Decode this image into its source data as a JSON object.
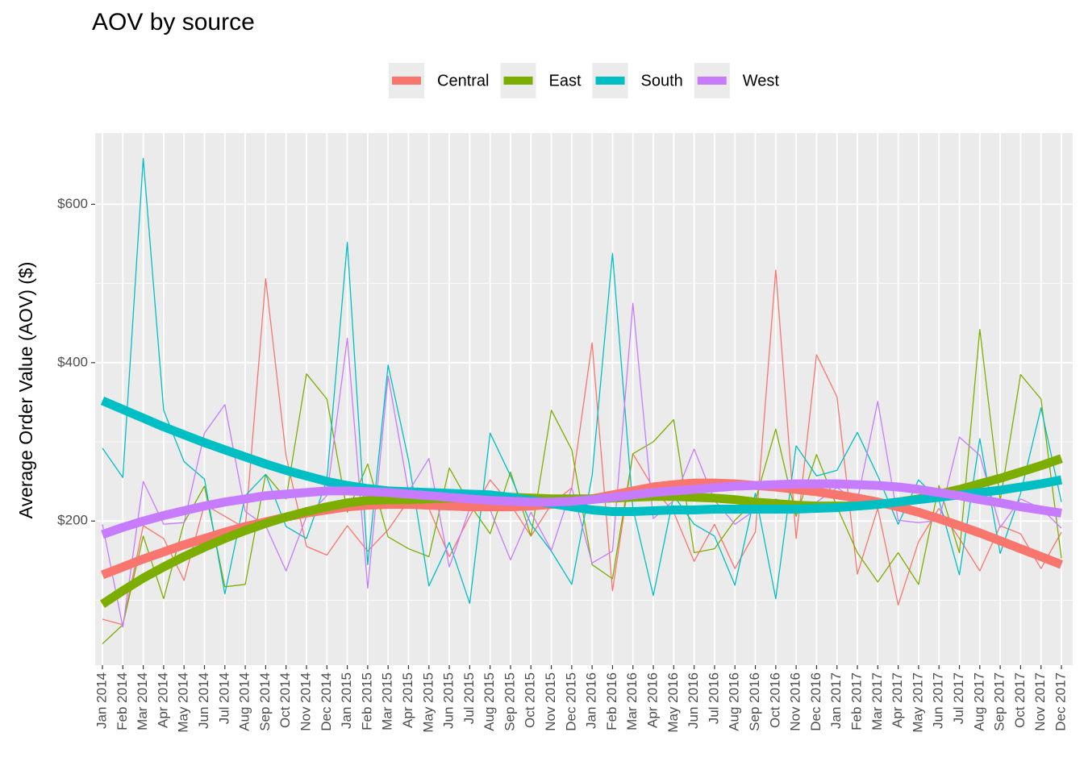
{
  "chart_data": {
    "type": "line",
    "title": "AOV by source",
    "y_label": "Average Order Value (AOV) ($)",
    "categories": [
      "Jan 2014",
      "Feb 2014",
      "Mar 2014",
      "Apr 2014",
      "May 2014",
      "Jun 2014",
      "Jul 2014",
      "Aug 2014",
      "Sep 2014",
      "Oct 2014",
      "Nov 2014",
      "Dec 2014",
      "Jan 2015",
      "Feb 2015",
      "Mar 2015",
      "Apr 2015",
      "May 2015",
      "Jun 2015",
      "Jul 2015",
      "Aug 2015",
      "Sep 2015",
      "Oct 2015",
      "Nov 2015",
      "Dec 2015",
      "Jan 2016",
      "Feb 2016",
      "Mar 2016",
      "Apr 2016",
      "May 2016",
      "Jun 2016",
      "Jul 2016",
      "Aug 2016",
      "Sep 2016",
      "Oct 2016",
      "Nov 2016",
      "Dec 2016",
      "Jan 2017",
      "Feb 2017",
      "Mar 2017",
      "Apr 2017",
      "May 2017",
      "Jun 2017",
      "Jul 2017",
      "Aug 2017",
      "Sep 2017",
      "Oct 2017",
      "Nov 2017",
      "Dec 2017"
    ],
    "series": [
      {
        "name": "Central",
        "color": "#f8766d",
        "values": [
          76,
          69,
          194,
          178,
          125,
          221,
          206,
          191,
          506,
          282,
          168,
          157,
          194,
          162,
          189,
          226,
          216,
          155,
          206,
          252,
          221,
          181,
          221,
          242,
          425,
          112,
          285,
          242,
          211,
          149,
          196,
          140,
          186,
          517,
          178,
          410,
          357,
          133,
          216,
          94,
          174,
          216,
          178,
          137,
          194,
          184,
          140,
          186
        ],
        "trend": [
          132,
          142,
          152,
          161,
          170,
          178,
          186,
          193,
          199,
          205,
          210,
          214,
          218,
          220,
          221,
          221,
          220,
          219,
          218,
          218,
          218,
          219,
          221,
          224,
          228,
          233,
          238,
          243,
          246,
          248,
          248,
          247,
          245,
          243,
          240,
          237,
          233,
          229,
          224,
          218,
          211,
          203,
          194,
          185,
          175,
          165,
          155,
          145
        ]
      },
      {
        "name": "East",
        "color": "#7cae00",
        "values": [
          45,
          69,
          181,
          102,
          198,
          244,
          117,
          120,
          259,
          228,
          386,
          354,
          211,
          272,
          180,
          165,
          155,
          267,
          221,
          184,
          262,
          181,
          340,
          290,
          145,
          127,
          285,
          300,
          328,
          160,
          165,
          201,
          226,
          316,
          206,
          284,
          218,
          160,
          123,
          160,
          120,
          245,
          160,
          442,
          226,
          385,
          354,
          153
        ],
        "trend": [
          95,
          112,
          128,
          142,
          155,
          167,
          178,
          188,
          197,
          205,
          212,
          218,
          223,
          226,
          227,
          227,
          228,
          229,
          230,
          230,
          230,
          229,
          228,
          228,
          228,
          229,
          230,
          231,
          231,
          230,
          229,
          227,
          224,
          222,
          220,
          219,
          219,
          219,
          221,
          224,
          228,
          234,
          240,
          247,
          254,
          262,
          270,
          279
        ]
      },
      {
        "name": "South",
        "color": "#00bfc4",
        "values": [
          292,
          255,
          658,
          340,
          275,
          253,
          108,
          232,
          259,
          193,
          178,
          252,
          552,
          145,
          397,
          277,
          118,
          173,
          96,
          311,
          257,
          196,
          162,
          120,
          257,
          538,
          216,
          106,
          232,
          196,
          181,
          119,
          235,
          102,
          295,
          257,
          264,
          312,
          257,
          196,
          252,
          226,
          132,
          304,
          159,
          235,
          343,
          224
        ],
        "trend": [
          352,
          341,
          330,
          319,
          309,
          299,
          290,
          281,
          272,
          264,
          257,
          250,
          245,
          241,
          238,
          237,
          236,
          235,
          234,
          233,
          230,
          226,
          222,
          218,
          214,
          212,
          212,
          213,
          214,
          214,
          215,
          215,
          215,
          215,
          215,
          216,
          217,
          219,
          221,
          224,
          227,
          230,
          233,
          236,
          239,
          243,
          247,
          252
        ]
      },
      {
        "name": "West",
        "color": "#c77cff",
        "values": [
          196,
          66,
          250,
          196,
          198,
          311,
          347,
          212,
          194,
          137,
          206,
          232,
          431,
          115,
          383,
          237,
          279,
          142,
          216,
          214,
          151,
          211,
          163,
          242,
          147,
          162,
          475,
          203,
          226,
          291,
          226,
          196,
          214,
          228,
          216,
          224,
          242,
          226,
          351,
          201,
          198,
          201,
          306,
          283,
          192,
          228,
          216,
          191
        ],
        "trend": [
          183,
          192,
          200,
          207,
          213,
          219,
          224,
          228,
          232,
          234,
          236,
          238,
          238,
          237,
          236,
          234,
          232,
          230,
          228,
          226,
          225,
          224,
          224,
          225,
          227,
          230,
          233,
          236,
          238,
          240,
          242,
          244,
          245,
          246,
          247,
          247,
          247,
          246,
          245,
          243,
          240,
          236,
          232,
          227,
          223,
          218,
          214,
          210
        ]
      }
    ],
    "ylim": [
      18,
      690
    ],
    "yticks": [
      {
        "value": 200,
        "label": "$200"
      },
      {
        "value": 400,
        "label": "$400"
      },
      {
        "value": 600,
        "label": "$600"
      }
    ],
    "y_minor_ticks": [
      100,
      300,
      500
    ],
    "grid": true,
    "legend": "top"
  }
}
